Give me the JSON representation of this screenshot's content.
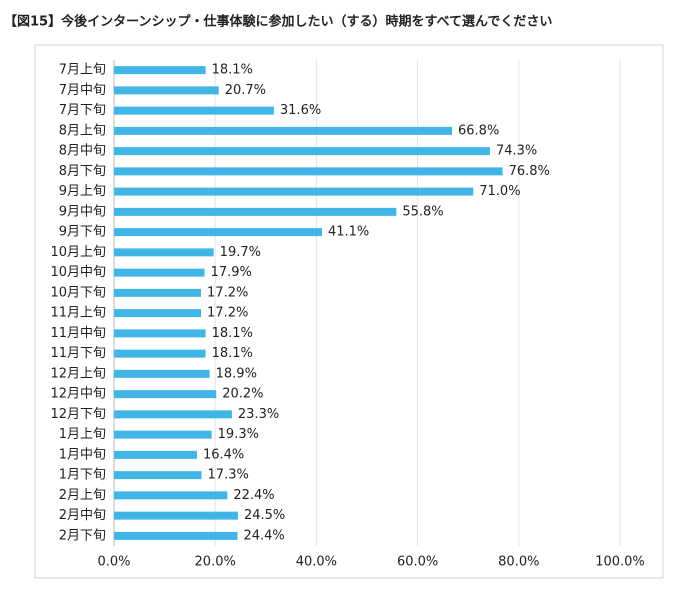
{
  "chart_data": {
    "type": "bar",
    "orientation": "horizontal",
    "title": "【図15】今後インターンシップ・仕事体験に参加したい（する）時期をすべて選んでください",
    "categories": [
      "7月上旬",
      "7月中旬",
      "7月下旬",
      "8月上旬",
      "8月中旬",
      "8月下旬",
      "9月上旬",
      "9月中旬",
      "9月下旬",
      "10月上旬",
      "10月中旬",
      "10月下旬",
      "11月上旬",
      "11月中旬",
      "11月下旬",
      "12月上旬",
      "12月中旬",
      "12月下旬",
      "1月上旬",
      "1月中旬",
      "1月下旬",
      "2月上旬",
      "2月中旬",
      "2月下旬"
    ],
    "values": [
      18.1,
      20.7,
      31.6,
      66.8,
      74.3,
      76.8,
      71.0,
      55.8,
      41.1,
      19.7,
      17.9,
      17.2,
      17.2,
      18.1,
      18.1,
      18.9,
      20.2,
      23.3,
      19.3,
      16.4,
      17.3,
      22.4,
      24.5,
      24.4
    ],
    "value_labels": [
      "18.1%",
      "20.7%",
      "31.6%",
      "66.8%",
      "74.3%",
      "76.8%",
      "71.0%",
      "55.8%",
      "41.1%",
      "19.7%",
      "17.9%",
      "17.2%",
      "17.2%",
      "18.1%",
      "18.1%",
      "18.9%",
      "20.2%",
      "23.3%",
      "19.3%",
      "16.4%",
      "17.3%",
      "22.4%",
      "24.5%",
      "24.4%"
    ],
    "color": "#41b6e6",
    "xlim": [
      0,
      100
    ],
    "xticks": [
      {
        "value": 0,
        "label": "0.0%"
      },
      {
        "value": 20,
        "label": "20.0%"
      },
      {
        "value": 40,
        "label": "40.0%"
      },
      {
        "value": 60,
        "label": "60.0%"
      },
      {
        "value": 80,
        "label": "80.0%"
      },
      {
        "value": 100,
        "label": "100.0%"
      }
    ],
    "grid": true
  }
}
